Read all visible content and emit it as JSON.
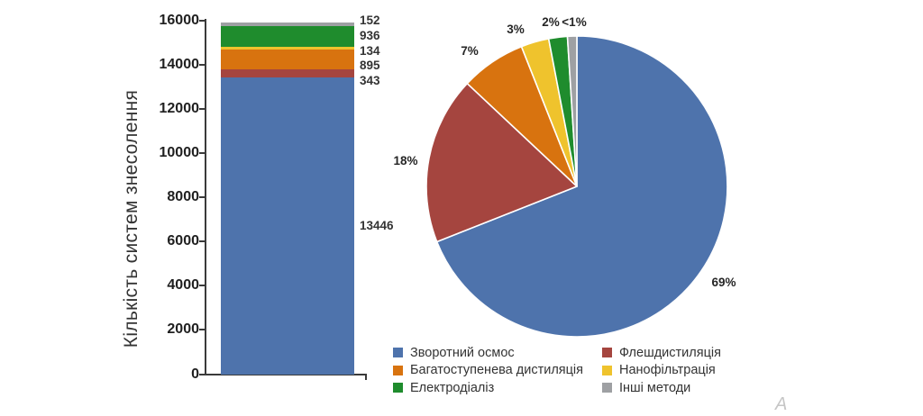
{
  "chart_data": [
    {
      "type": "bar",
      "stacked": true,
      "title": "",
      "xlabel": "",
      "ylabel": "Кількість систем знесолення",
      "ylim": [
        0,
        16000
      ],
      "ytick_step": 2000,
      "grid": false,
      "categories": [
        ""
      ],
      "series": [
        {
          "name": "Зворотний осмос",
          "value": 13446,
          "value_label": "13446",
          "color": "#4E73AC"
        },
        {
          "name": "Флешдистиляція",
          "value": 343,
          "value_label": "343",
          "color": "#A5453F"
        },
        {
          "name": "Багатоступенева дистиляція",
          "value": 895,
          "value_label": "895",
          "color": "#D8730F"
        },
        {
          "name": "Нанофільтрація",
          "value": 134,
          "value_label": "134",
          "color": "#EFC32D"
        },
        {
          "name": "Електродіаліз",
          "value": 936,
          "value_label": "936",
          "color": "#1F8C2D"
        },
        {
          "name": "Інші методи",
          "value": 152,
          "value_label": "152",
          "color": "#9EA0A3"
        }
      ]
    },
    {
      "type": "pie",
      "title": "",
      "start_angle_deg_from_top": 0,
      "direction": "clockwise",
      "legend_position": "bottom",
      "slices": [
        {
          "name": "Зворотний осмос",
          "pct": 69,
          "label": "69%",
          "color": "#4E73AC"
        },
        {
          "name": "Флешдистиляція",
          "pct": 18,
          "label": "18%",
          "color": "#A5453F"
        },
        {
          "name": "Багатоступенева дистиляція",
          "pct": 7,
          "label": "7%",
          "color": "#D8730F"
        },
        {
          "name": "Нанофільтрація",
          "pct": 3,
          "label": "3%",
          "color": "#EFC32D"
        },
        {
          "name": "Електродіаліз",
          "pct": 2,
          "label": "2%",
          "color": "#1F8C2D"
        },
        {
          "name": "Інші методи",
          "pct": 1,
          "label": "<1%",
          "color": "#9EA0A3"
        }
      ]
    }
  ],
  "legend": {
    "columns": [
      [
        {
          "label": "Зворотний осмос",
          "color": "#4E73AC"
        },
        {
          "label": "Багатоступенева дистиляція",
          "color": "#D8730F"
        },
        {
          "label": "Електродіаліз",
          "color": "#1F8C2D"
        }
      ],
      [
        {
          "label": "Флешдистиляція",
          "color": "#A5453F"
        },
        {
          "label": "Нанофільтрація",
          "color": "#EFC32D"
        },
        {
          "label": "Інші методи",
          "color": "#9EA0A3"
        }
      ]
    ]
  },
  "watermark": "A"
}
